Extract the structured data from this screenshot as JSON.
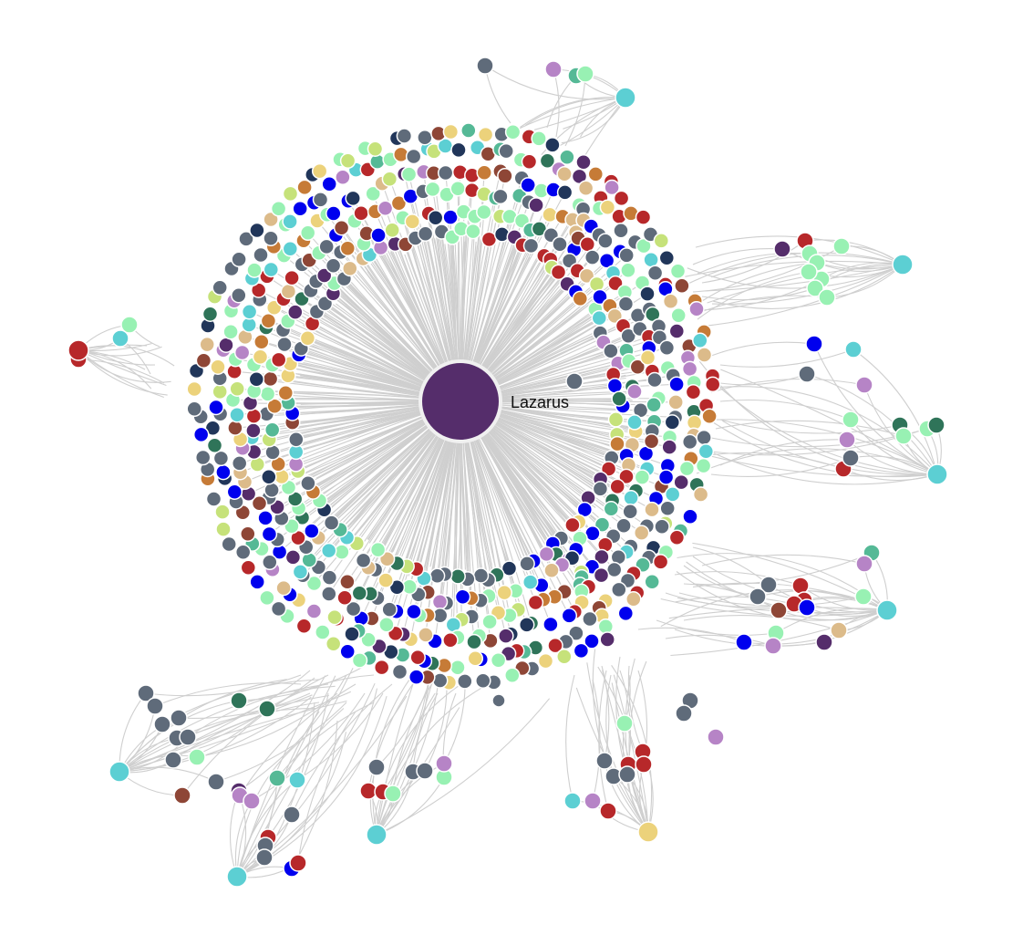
{
  "graph": {
    "type": "force-directed-network",
    "hub": {
      "label": "Lazarus",
      "color": "#552d6b"
    },
    "palette": {
      "slate": "#5f6b7a",
      "mint": "#98f1b3",
      "red": "#b7282a",
      "blue": "#0000ee",
      "teal": "#5ccfd3",
      "lavender": "#b684c6",
      "sea": "#55b996",
      "forest": "#2f7459",
      "eggplant": "#552d6b",
      "tan": "#dcbb8a",
      "gold": "#ecd27b",
      "rust": "#8e4636",
      "lime": "#c6e27a",
      "navy": "#21365a",
      "orange": "#c67b37"
    },
    "edge_color": "#cfcfcf",
    "ring_mix": [
      "slate",
      "slate",
      "slate",
      "slate",
      "mint",
      "mint",
      "mint",
      "red",
      "red",
      "blue",
      "blue",
      "lavender",
      "teal",
      "sea",
      "forest",
      "tan",
      "rust",
      "lime",
      "eggplant",
      "navy",
      "gold",
      "orange"
    ],
    "clusters": [
      {
        "id": "top",
        "hub_color": "teal",
        "members": [
          "slate",
          "lavender",
          "sea",
          "mint"
        ]
      },
      {
        "id": "upper-right",
        "hub_color": "teal",
        "members": [
          "eggplant",
          "red",
          "mint",
          "mint",
          "mint",
          "mint",
          "mint",
          "mint",
          "mint"
        ]
      },
      {
        "id": "right",
        "hub_color": "teal",
        "members": [
          "blue",
          "slate",
          "lavender",
          "forest",
          "mint",
          "mint",
          "mint",
          "teal",
          "red",
          "slate",
          "lavender",
          "forest"
        ]
      },
      {
        "id": "lower-right",
        "hub_color": "teal",
        "members": [
          "slate",
          "slate",
          "red",
          "red",
          "rust",
          "red",
          "blue",
          "mint",
          "lavender",
          "eggplant",
          "tan",
          "sea",
          "lavender",
          "mint",
          "blue"
        ]
      },
      {
        "id": "bottom-center",
        "hub_color": "gold",
        "members": [
          "slate",
          "slate",
          "red",
          "red",
          "red",
          "slate",
          "mint",
          "teal",
          "lavender",
          "red"
        ]
      },
      {
        "id": "bottom-mid",
        "hub_color": "teal",
        "members": [
          "slate",
          "slate",
          "slate",
          "mint",
          "lavender",
          "red",
          "red",
          "mint"
        ]
      },
      {
        "id": "bottom-left",
        "hub_color": "teal",
        "members": [
          "slate",
          "slate",
          "slate",
          "slate",
          "slate",
          "slate",
          "mint",
          "slate",
          "slate",
          "rust",
          "forest",
          "forest"
        ]
      },
      {
        "id": "bottom-far-left",
        "hub_color": "teal",
        "members": [
          "eggplant",
          "lavender",
          "lavender",
          "sea",
          "teal",
          "slate",
          "red",
          "slate",
          "blue",
          "red",
          "slate"
        ]
      },
      {
        "id": "left",
        "hub_color": "red",
        "members": [
          "red",
          "red",
          "mint",
          "teal"
        ]
      }
    ]
  }
}
